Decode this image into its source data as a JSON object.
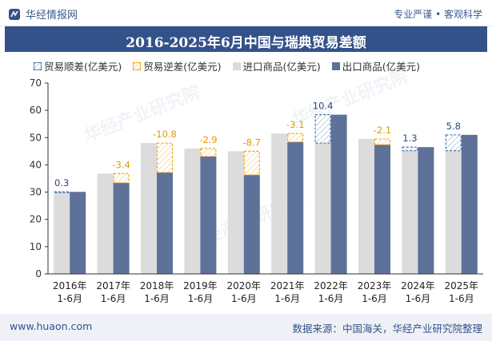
{
  "header": {
    "brand": "华经情报网",
    "tagline": "专业严谨 • 客观科学"
  },
  "footer": {
    "site": "www.huaon.com",
    "source": "数据来源：中国海关，华经产业研究院整理"
  },
  "watermark": "华经产业研究院",
  "colors": {
    "title_bg": "#34528a",
    "import": "#dcdcdc",
    "export": "#5e7199",
    "surplus": "#3f6d9e",
    "deficit": "#f0a000"
  },
  "chart_data": {
    "type": "bar",
    "title": "2016-2025年6月中国与瑞典贸易差额",
    "categories": [
      "2016年\n1-6月",
      "2017年\n1-6月",
      "2018年\n1-6月",
      "2019年\n1-6月",
      "2020年\n1-6月",
      "2021年\n1-6月",
      "2022年\n1-6月",
      "2023年\n1-6月",
      "2024年\n1-6月",
      "2025年\n1-6月"
    ],
    "legend": [
      "贸易顺差(亿美元)",
      "贸易逆差(亿美元)",
      "进口商品(亿美元)",
      "出口商品(亿美元)"
    ],
    "series": [
      {
        "name": "进口商品(亿美元)",
        "values": [
          29.8,
          36.8,
          48.0,
          46.0,
          45.0,
          51.5,
          48.0,
          49.5,
          45.2,
          45.2
        ]
      },
      {
        "name": "出口商品(亿美元)",
        "values": [
          30.1,
          33.4,
          37.2,
          43.1,
          36.3,
          48.4,
          58.4,
          47.4,
          46.5,
          51.0
        ]
      }
    ],
    "balance": [
      0.3,
      -3.4,
      -10.8,
      -2.9,
      -8.7,
      -3.1,
      10.4,
      -2.1,
      1.3,
      5.8
    ],
    "balance_labels": [
      "0.3",
      "-3.4",
      "-10.8",
      "-2.9",
      "-8.7",
      "-3.1",
      "10.4",
      "-2.1",
      "1.3",
      "5.8"
    ],
    "ylim": [
      0,
      70
    ],
    "yticks": [
      0,
      10,
      20,
      30,
      40,
      50,
      60,
      70
    ],
    "grid": false,
    "legend_position": "top-left"
  }
}
